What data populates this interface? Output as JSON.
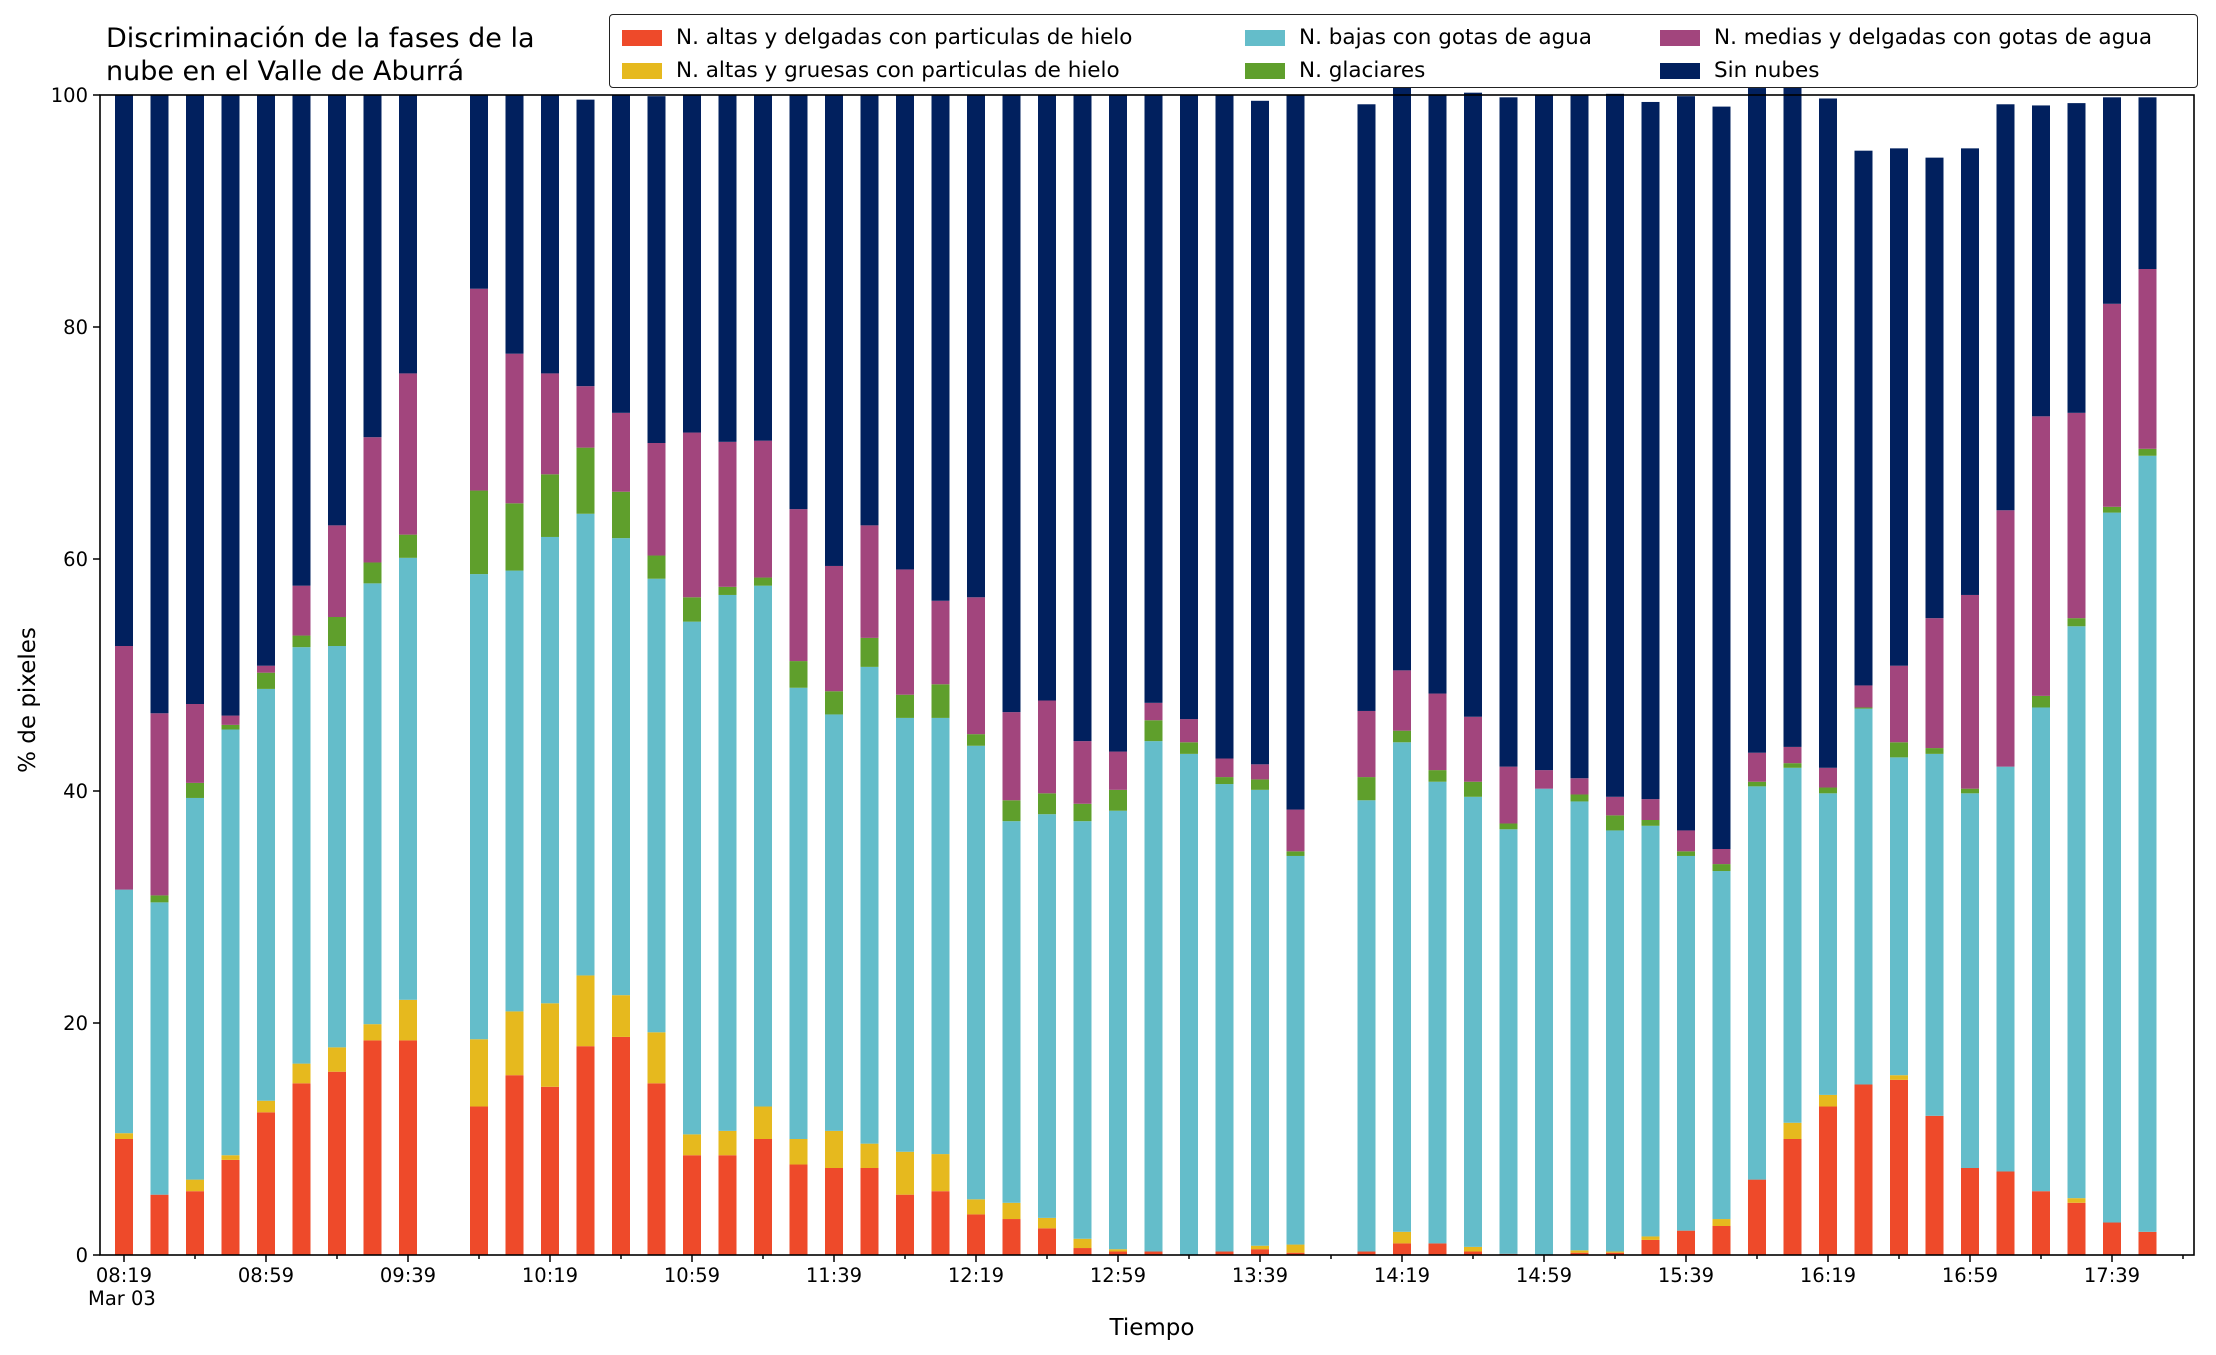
{
  "chart_data": {
    "type": "bar",
    "stacked": true,
    "title": "Discriminación de la fases de la\nnube en el Valle de Aburrá",
    "xlabel": "Tiempo",
    "ylabel": "% de pixeles",
    "ylim": [
      0,
      100
    ],
    "yticks": [
      0,
      20,
      40,
      60,
      80,
      100
    ],
    "xtick_labels": [
      "08:19",
      "08:59",
      "09:39",
      "10:19",
      "10:59",
      "11:39",
      "12:19",
      "12:59",
      "13:39",
      "14:19",
      "14:59",
      "15:39",
      "16:19",
      "16:59",
      "17:39"
    ],
    "xtick_sublabel": "Mar 03",
    "legend_placement": "top-right",
    "grid": false,
    "categories": [
      "08:19",
      "08:29",
      "08:39",
      "08:49",
      "08:59",
      "09:09",
      "09:19",
      "09:29",
      "09:39",
      "09:49",
      "09:59",
      "10:09",
      "10:19",
      "10:29",
      "10:39",
      "10:49",
      "10:59",
      "11:09",
      "11:19",
      "11:29",
      "11:39",
      "11:49",
      "11:59",
      "12:09",
      "12:19",
      "12:29",
      "12:39",
      "12:49",
      "12:59",
      "13:09",
      "13:19",
      "13:29",
      "13:39",
      "13:49",
      "13:59",
      "14:09",
      "14:19",
      "14:29",
      "14:39",
      "14:49",
      "14:59",
      "15:09",
      "15:19",
      "15:29",
      "15:39",
      "15:49",
      "15:59",
      "16:09",
      "16:19",
      "16:29",
      "16:39",
      "16:49",
      "16:59",
      "17:09",
      "17:19",
      "17:29",
      "17:39",
      "17:49"
    ],
    "series": [
      {
        "name": "N. altas y delgadas con particulas de hielo",
        "color": "#ee4a2a",
        "values": [
          10,
          5.2,
          5.5,
          8.2,
          12.3,
          14.8,
          15.8,
          18.5,
          18.5,
          0,
          12.8,
          15.5,
          14.5,
          18,
          18.8,
          14.8,
          8.6,
          8.6,
          10,
          7.8,
          7.5,
          7.5,
          5.2,
          5.5,
          3.5,
          3.1,
          2.3,
          0.6,
          0.3,
          0.3,
          0,
          0.3,
          0.5,
          0.2,
          0,
          0.3,
          1,
          1,
          0.3,
          0.1,
          0,
          0.2,
          0.2,
          1.3,
          2.1,
          2.5,
          6.5,
          10,
          12.8,
          14.7,
          15.1,
          12,
          7.5,
          7.2,
          5.5,
          4.5,
          2.8,
          2
        ]
      },
      {
        "name": "N. altas y gruesas con particulas de hielo",
        "color": "#e6b91e",
        "values": [
          0.5,
          0,
          1,
          0.4,
          1,
          1.7,
          2.1,
          1.4,
          3.5,
          0,
          5.8,
          5.5,
          7.2,
          6.1,
          3.6,
          4.4,
          1.8,
          2.1,
          2.8,
          2.2,
          3.2,
          2.1,
          3.7,
          3.2,
          1.3,
          1.4,
          0.9,
          0.8,
          0.2,
          0,
          0,
          0,
          0.3,
          0.7,
          0,
          0,
          1,
          0,
          0.4,
          0,
          0,
          0.2,
          0.1,
          0.3,
          0,
          0.6,
          0,
          1.4,
          1,
          0,
          0.4,
          0,
          0,
          0,
          0,
          0.4,
          0,
          0
        ]
      },
      {
        "name": "N. bajas con gotas de agua",
        "color": "#64bdca",
        "values": [
          21,
          25.2,
          32.9,
          36.7,
          35.5,
          35.9,
          34.6,
          38,
          38.1,
          0,
          40.1,
          38,
          40.2,
          39.8,
          39.4,
          39.1,
          44.2,
          46.2,
          44.9,
          38.9,
          35.9,
          41.1,
          37.4,
          37.6,
          39.1,
          32.9,
          34.8,
          36,
          37.8,
          44,
          43.2,
          40.3,
          39.3,
          33.5,
          0,
          38.9,
          42.2,
          39.8,
          38.8,
          36.6,
          40.2,
          38.7,
          36.3,
          35.4,
          32.3,
          30,
          33.9,
          30.6,
          26,
          32.4,
          27.4,
          31.2,
          32.3,
          34.9,
          41.7,
          49.3,
          61.2,
          66.9
        ]
      },
      {
        "name": "N. glaciares",
        "color": "#5f9f2c",
        "values": [
          0,
          0.6,
          1.3,
          0.4,
          1.4,
          1,
          2.5,
          1.8,
          2,
          0,
          7.2,
          5.8,
          5.4,
          5.7,
          4,
          2,
          2.1,
          0.7,
          0.7,
          2.3,
          2,
          2.5,
          2,
          2.9,
          1,
          1.8,
          1.8,
          1.5,
          1.8,
          1.8,
          1,
          0.6,
          0.9,
          0.4,
          0,
          2,
          1,
          1,
          1.3,
          0.5,
          0,
          0.6,
          1.3,
          0.5,
          0.4,
          0.6,
          0.4,
          0.4,
          0.5,
          0.1,
          1.3,
          0.5,
          0.4,
          0,
          1,
          0.7,
          0.5,
          0.6
        ]
      },
      {
        "name": "N. medias y delgadas con gotas de agua",
        "color": "#a2457d",
        "values": [
          21,
          15.7,
          6.8,
          0.8,
          0.6,
          4.3,
          7.9,
          10.8,
          13.9,
          0,
          17.4,
          12.9,
          8.7,
          5.3,
          6.8,
          9.7,
          14.2,
          12.5,
          11.8,
          13.1,
          10.8,
          9.7,
          10.8,
          7.2,
          11.8,
          7.6,
          8,
          5.4,
          3.3,
          1.5,
          2,
          1.6,
          1.3,
          3.6,
          0,
          5.7,
          5.2,
          6.6,
          5.6,
          4.9,
          1.6,
          1.4,
          1.6,
          1.8,
          1.8,
          1.3,
          2.5,
          1.4,
          1.7,
          1.9,
          6.6,
          11.2,
          16.7,
          22.1,
          24.1,
          17.7,
          17.5,
          15.5
        ]
      },
      {
        "name": "Sin nubes",
        "color": "#01205e",
        "values": [
          47.5,
          53.3,
          52.5,
          53.5,
          49.2,
          42.3,
          37.1,
          29.5,
          24,
          0,
          16.7,
          22.3,
          24,
          24.7,
          27.4,
          29.9,
          29.1,
          29.9,
          29.8,
          35.7,
          40.6,
          37.1,
          40.9,
          43.6,
          43.3,
          53.2,
          52.2,
          55.7,
          56.6,
          52.4,
          53.8,
          57.2,
          57.2,
          61.6,
          0,
          52.3,
          50.8,
          51.6,
          53.8,
          57.7,
          58.2,
          58.9,
          60.6,
          60.1,
          63.3,
          64,
          57.3,
          57,
          57.7,
          46.1,
          44.6,
          39.7,
          38.5,
          35,
          26.8,
          26.7,
          17.8,
          14.8
        ]
      }
    ]
  }
}
